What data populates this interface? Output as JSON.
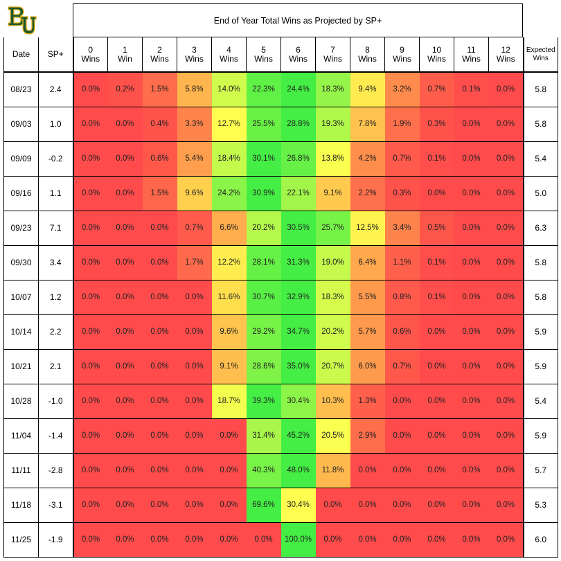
{
  "logo": {
    "name": "baylor-bu-logo",
    "color": "#1f5a2b",
    "outline": "#f0b323"
  },
  "chart_data": {
    "type": "table",
    "title": "End of Year Total Wins as Projected by SP+",
    "header": {
      "date": "Date",
      "sp": "SP+",
      "categories": [
        [
          "0",
          "Wins"
        ],
        [
          "1",
          "Win"
        ],
        [
          "2",
          "Wins"
        ],
        [
          "3",
          "Wins"
        ],
        [
          "4",
          "Wins"
        ],
        [
          "5",
          "Wins"
        ],
        [
          "6",
          "Wins"
        ],
        [
          "7",
          "Wins"
        ],
        [
          "8",
          "Wins"
        ],
        [
          "9",
          "Wins"
        ],
        [
          "10",
          "Wins"
        ],
        [
          "11",
          "Wins"
        ],
        [
          "12",
          "Wins"
        ]
      ],
      "expected": [
        "Expected",
        "Wins"
      ]
    },
    "rows": [
      {
        "date": "08/23",
        "sp": "2.4",
        "values": [
          "0.0%",
          "0.2%",
          "1.5%",
          "5.8%",
          "14.0%",
          "22.3%",
          "24.4%",
          "18.3%",
          "9.4%",
          "3.2%",
          "0.7%",
          "0.1%",
          "0.0%"
        ],
        "expected": "5.8"
      },
      {
        "date": "09/03",
        "sp": "1.0",
        "values": [
          "0.0%",
          "0.0%",
          "0.4%",
          "3.3%",
          "12.7%",
          "25.5%",
          "28.8%",
          "19.3%",
          "7.8%",
          "1.9%",
          "0.3%",
          "0.0%",
          "0.0%"
        ],
        "expected": "5.8"
      },
      {
        "date": "09/09",
        "sp": "-0.2",
        "values": [
          "0.0%",
          "0.0%",
          "0.6%",
          "5.4%",
          "18.4%",
          "30.1%",
          "26.8%",
          "13.8%",
          "4.2%",
          "0.7%",
          "0.1%",
          "0.0%",
          "0.0%"
        ],
        "expected": "5.4"
      },
      {
        "date": "09/16",
        "sp": "1.1",
        "values": [
          "0.0%",
          "0.0%",
          "1.5%",
          "9.6%",
          "24.2%",
          "30.9%",
          "22.1%",
          "9.1%",
          "2.2%",
          "0.3%",
          "0.0%",
          "0.0%",
          "0.0%"
        ],
        "expected": "5.0"
      },
      {
        "date": "09/23",
        "sp": "7.1",
        "values": [
          "0.0%",
          "0.0%",
          "0.0%",
          "0.7%",
          "6.6%",
          "20.2%",
          "30.5%",
          "25.7%",
          "12.5%",
          "3.4%",
          "0.5%",
          "0.0%",
          "0.0%"
        ],
        "expected": "6.3"
      },
      {
        "date": "09/30",
        "sp": "3.4",
        "values": [
          "0.0%",
          "0.0%",
          "0.0%",
          "1.7%",
          "12.2%",
          "28.1%",
          "31.3%",
          "19.0%",
          "6.4%",
          "1.1%",
          "0.1%",
          "0.0%",
          "0.0%"
        ],
        "expected": "5.8"
      },
      {
        "date": "10/07",
        "sp": "1.2",
        "values": [
          "0.0%",
          "0.0%",
          "0.0%",
          "0.0%",
          "11.6%",
          "30.7%",
          "32.9%",
          "18.3%",
          "5.5%",
          "0.8%",
          "0.1%",
          "0.0%",
          "0.0%"
        ],
        "expected": "5.8"
      },
      {
        "date": "10/14",
        "sp": "2.2",
        "values": [
          "0.0%",
          "0.0%",
          "0.0%",
          "0.0%",
          "9.6%",
          "29.2%",
          "34.7%",
          "20.2%",
          "5.7%",
          "0.6%",
          "0.0%",
          "0.0%",
          "0.0%"
        ],
        "expected": "5.9"
      },
      {
        "date": "10/21",
        "sp": "2.1",
        "values": [
          "0.0%",
          "0.0%",
          "0.0%",
          "0.0%",
          "9.1%",
          "28.6%",
          "35.0%",
          "20.7%",
          "6.0%",
          "0.7%",
          "0.0%",
          "0.0%",
          "0.0%"
        ],
        "expected": "5.9"
      },
      {
        "date": "10/28",
        "sp": "-1.0",
        "values": [
          "0.0%",
          "0.0%",
          "0.0%",
          "0.0%",
          "18.7%",
          "39.3%",
          "30.4%",
          "10.3%",
          "1.3%",
          "0.0%",
          "0.0%",
          "0.0%",
          "0.0%"
        ],
        "expected": "5.4"
      },
      {
        "date": "11/04",
        "sp": "-1.4",
        "values": [
          "0.0%",
          "0.0%",
          "0.0%",
          "0.0%",
          "0.0%",
          "31.4%",
          "45.2%",
          "20.5%",
          "2.9%",
          "0.0%",
          "0.0%",
          "0.0%",
          "0.0%"
        ],
        "expected": "5.9"
      },
      {
        "date": "11/11",
        "sp": "-2.8",
        "values": [
          "0.0%",
          "0.0%",
          "0.0%",
          "0.0%",
          "0.0%",
          "40.3%",
          "48.0%",
          "11.8%",
          "0.0%",
          "0.0%",
          "0.0%",
          "0.0%",
          "0.0%"
        ],
        "expected": "5.7"
      },
      {
        "date": "11/18",
        "sp": "-3.1",
        "values": [
          "0.0%",
          "0.0%",
          "0.0%",
          "0.0%",
          "0.0%",
          "69.6%",
          "30.4%",
          "0.0%",
          "0.0%",
          "0.0%",
          "0.0%",
          "0.0%",
          "0.0%"
        ],
        "expected": "5.3"
      },
      {
        "date": "11/25",
        "sp": "-1.9",
        "values": [
          "0.0%",
          "0.0%",
          "0.0%",
          "0.0%",
          "0.0%",
          "0.0%",
          "100.0%",
          "0.0%",
          "0.0%",
          "0.0%",
          "0.0%",
          "0.0%",
          "0.0%"
        ],
        "expected": "6.0"
      }
    ],
    "color_scale": {
      "low": "#ff4b4b",
      "mid": "#ffff4f",
      "high": "#44ee44"
    }
  }
}
